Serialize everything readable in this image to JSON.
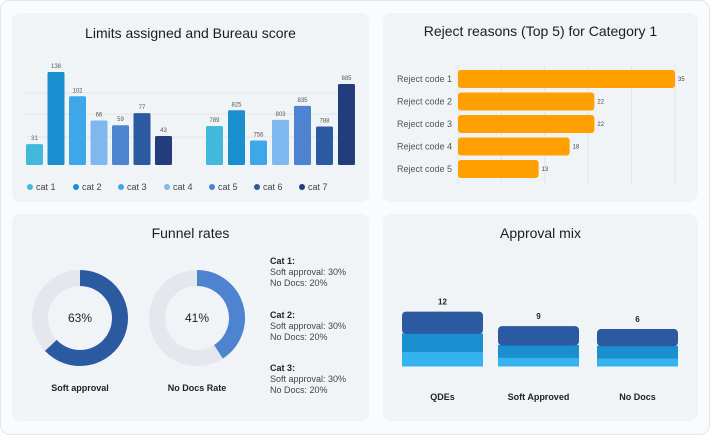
{
  "colors": {
    "cat1": "#42b9dc",
    "cat2": "#1a8fd0",
    "cat3": "#3ea7ea",
    "cat4": "#7fb8ee",
    "cat5": "#4e84cf",
    "cat6": "#2c5aa0",
    "cat7": "#223c7c",
    "orange": "#ff9f00",
    "donut_track": "#e4e7ee",
    "soft_approval": "#2c5aa0",
    "no_docs": "#4e84cf",
    "stack_top": "#2c5aa0",
    "stack_mid": "#1a8fd0",
    "stack_bottom": "#35b3ee"
  },
  "chart_data": [
    {
      "type": "bar",
      "title": "Limits assigned and Bureau score",
      "categories": [
        "cat 1",
        "cat 2",
        "cat 3",
        "cat 4",
        "cat 5",
        "cat 6",
        "cat 7"
      ],
      "series": [
        {
          "name": "Limits assigned",
          "values": [
            31,
            138,
            102,
            66,
            59,
            77,
            43
          ]
        },
        {
          "name": "Bureau score",
          "values": [
            789,
            825,
            756,
            803,
            835,
            788,
            885
          ]
        }
      ],
      "legend": [
        "cat 1",
        "cat 2",
        "cat 3",
        "cat 4",
        "cat 5",
        "cat 6",
        "cat 7"
      ]
    },
    {
      "type": "bar",
      "orientation": "horizontal",
      "title": "Reject reasons (Top 5) for Category 1",
      "categories": [
        "Reject code 1",
        "Reject code 2",
        "Reject code 3",
        "Reject code 4",
        "Reject code 5"
      ],
      "values": [
        35,
        22,
        22,
        18,
        13
      ]
    },
    {
      "type": "pie",
      "title": "Funnel rates",
      "donuts": [
        {
          "label": "Soft approval",
          "value": 63,
          "display": "63%"
        },
        {
          "label": "No Docs Rate",
          "value": 41,
          "display": "41%"
        }
      ],
      "notes": [
        {
          "heading": "Cat 1:",
          "line1": "Soft approval: 30%",
          "line2": "No Docs: 20%"
        },
        {
          "heading": "Cat 2:",
          "line1": "Soft approval: 30%",
          "line2": "No Docs: 20%"
        },
        {
          "heading": "Cat 3:",
          "line1": "Soft approval: 30%",
          "line2": "No Docs: 20%"
        }
      ]
    },
    {
      "type": "bar",
      "stacked": true,
      "title": "Approval mix",
      "categories": [
        "QDEs",
        "Soft Approved",
        "No Docs"
      ],
      "values": [
        12,
        9,
        6
      ],
      "segments": [
        [
          2,
          2.5,
          3
        ],
        [
          1.2,
          1.7,
          2.6
        ],
        [
          1.1,
          1.7,
          2.3
        ]
      ]
    }
  ]
}
